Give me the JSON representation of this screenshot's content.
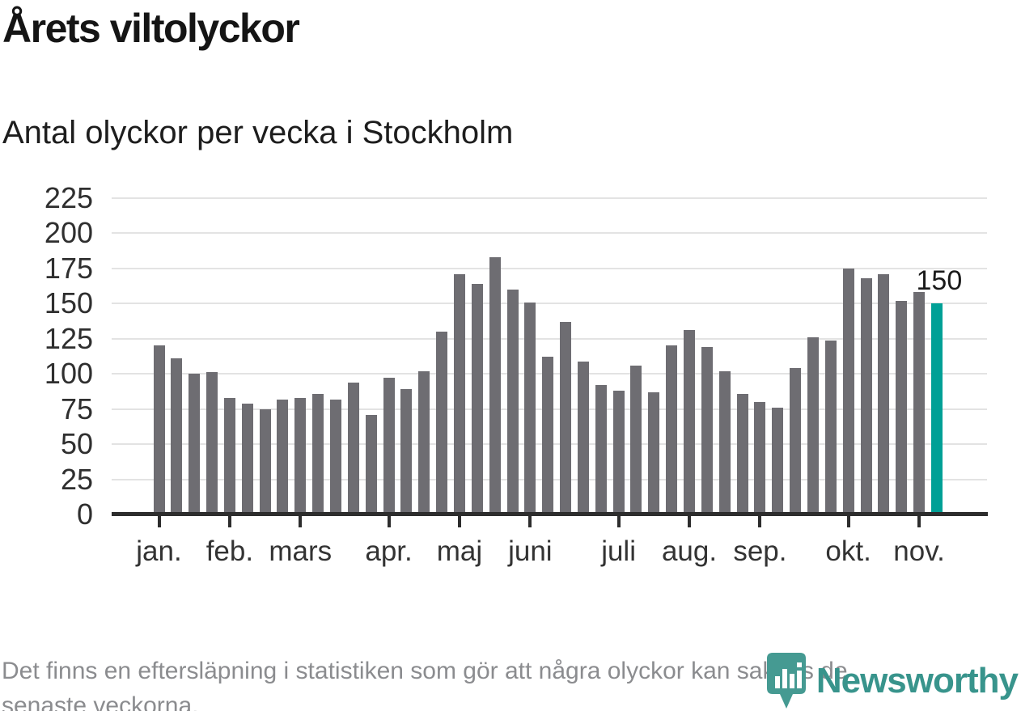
{
  "title": "Årets viltolyckor",
  "subtitle": "Antal olyckor per vecka i Stockholm",
  "footer": {
    "lines": [
      "Det finns en eftersläpning i statistiken som gör att några olyckor kan saknas de",
      "senaste veckorna."
    ]
  },
  "logo": {
    "name": "Newsworthy",
    "icon": "newsworthy-pin-icon",
    "color": "#38948c"
  },
  "colors": {
    "bar": "#6e6d72",
    "highlight_bar": "#00a096",
    "gridline": "#e3e3e3",
    "axis": "#2d2d2d",
    "title_text": "#151515",
    "muted_text": "#8b8c8f"
  },
  "chart_data": {
    "type": "bar",
    "title": "Årets viltolyckor",
    "subtitle": "Antal olyckor per vecka i Stockholm",
    "xlabel": "",
    "ylabel": "Antal olyckor per vecka",
    "ylim": [
      0,
      225
    ],
    "yticks": [
      0,
      25,
      50,
      75,
      100,
      125,
      150,
      175,
      200,
      225
    ],
    "grid": true,
    "legend": "none",
    "categories_note": "one bar per week, jan-nov",
    "values": [
      120,
      111,
      100,
      101,
      83,
      79,
      75,
      82,
      83,
      86,
      82,
      94,
      71,
      97,
      89,
      102,
      130,
      171,
      164,
      183,
      160,
      151,
      112,
      137,
      109,
      92,
      88,
      106,
      87,
      120,
      131,
      119,
      102,
      86,
      80,
      76,
      104,
      126,
      124,
      175,
      168,
      171,
      152,
      158,
      150
    ],
    "highlight_index": 44,
    "highlight_label": "150",
    "months": [
      {
        "label": "jan.",
        "week": 0
      },
      {
        "label": "feb.",
        "week": 4
      },
      {
        "label": "mars",
        "week": 8
      },
      {
        "label": "apr.",
        "week": 13
      },
      {
        "label": "maj",
        "week": 17
      },
      {
        "label": "juni",
        "week": 21
      },
      {
        "label": "juli",
        "week": 26
      },
      {
        "label": "aug.",
        "week": 30
      },
      {
        "label": "sep.",
        "week": 34
      },
      {
        "label": "okt.",
        "week": 39
      },
      {
        "label": "nov.",
        "week": 43
      }
    ]
  }
}
